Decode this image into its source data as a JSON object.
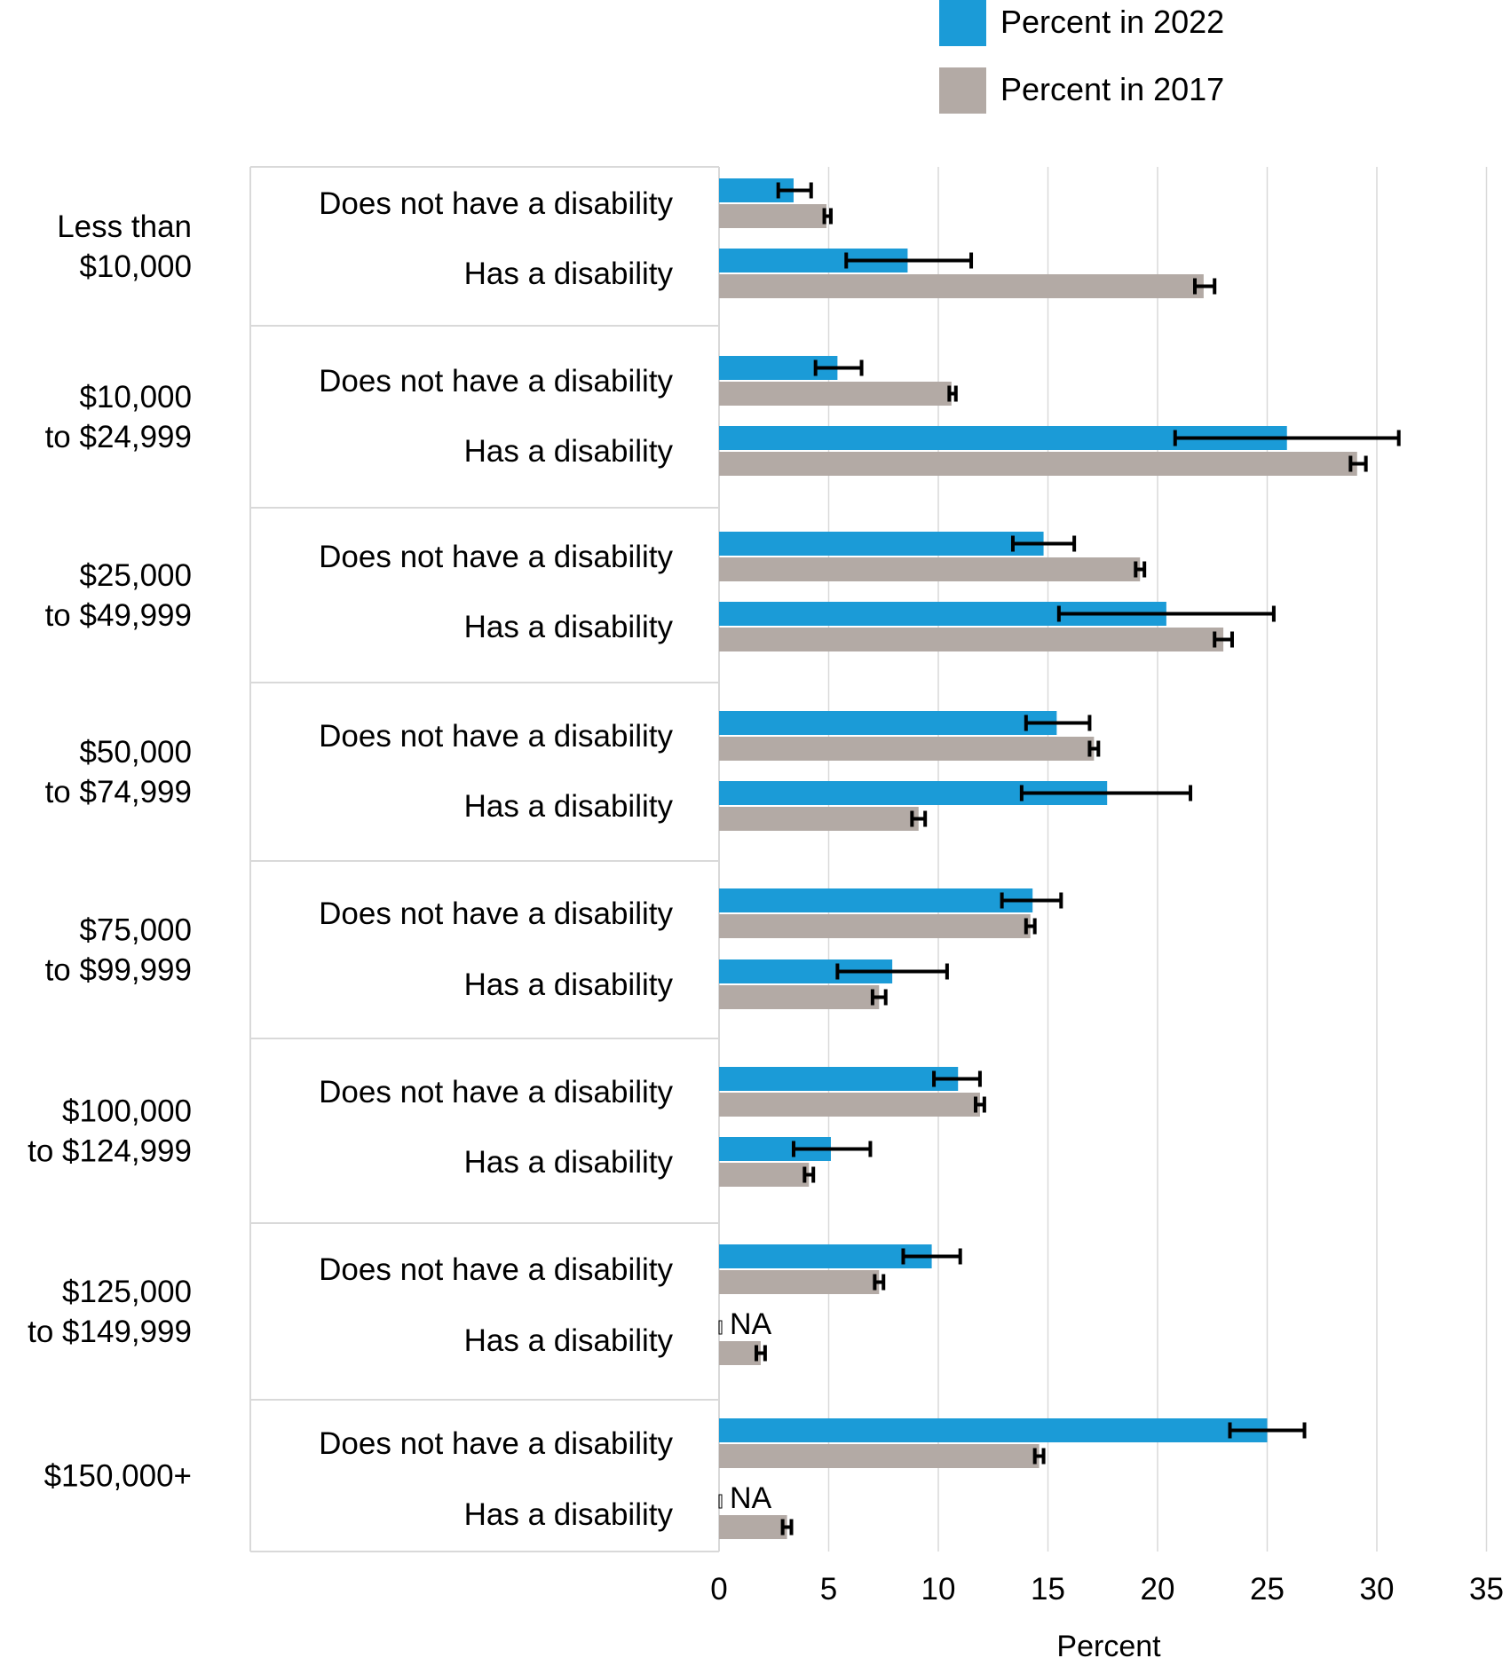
{
  "chart_data": {
    "type": "bar",
    "orientation": "horizontal",
    "xlabel": "Percent",
    "xlim": [
      0,
      35
    ],
    "xticks": [
      0,
      5,
      10,
      15,
      20,
      25,
      30,
      35
    ],
    "grid": "vertical",
    "legend_position": "top-right",
    "colors": {
      "2022": "#1b9bd7",
      "2017": "#b3aaa5",
      "error_bar": "#000000",
      "grid": "#d9d9d9",
      "separator": "#d9d9d9"
    },
    "series": [
      {
        "key": "2022",
        "name": "Percent in 2022"
      },
      {
        "key": "2017",
        "name": "Percent in 2017"
      }
    ],
    "groups": [
      {
        "label_lines": [
          "Less than",
          "$10,000"
        ],
        "rows": [
          {
            "label": "Does not have a disability",
            "v2022": 3.4,
            "lo2022": 2.7,
            "hi2022": 4.2,
            "v2017": 4.9,
            "lo2017": 4.8,
            "hi2017": 5.1
          },
          {
            "label": "Has a disability",
            "v2022": 8.6,
            "lo2022": 5.8,
            "hi2022": 11.5,
            "v2017": 22.1,
            "lo2017": 21.7,
            "hi2017": 22.6
          }
        ]
      },
      {
        "label_lines": [
          "$10,000",
          "to $24,999"
        ],
        "rows": [
          {
            "label": "Does not have a disability",
            "v2022": 5.4,
            "lo2022": 4.4,
            "hi2022": 6.5,
            "v2017": 10.6,
            "lo2017": 10.5,
            "hi2017": 10.8
          },
          {
            "label": "Has a disability",
            "v2022": 25.9,
            "lo2022": 20.8,
            "hi2022": 31.0,
            "v2017": 29.1,
            "lo2017": 28.8,
            "hi2017": 29.5
          }
        ]
      },
      {
        "label_lines": [
          "$25,000",
          "to $49,999"
        ],
        "rows": [
          {
            "label": "Does not have a disability",
            "v2022": 14.8,
            "lo2022": 13.4,
            "hi2022": 16.2,
            "v2017": 19.2,
            "lo2017": 19.0,
            "hi2017": 19.4
          },
          {
            "label": "Has a disability",
            "v2022": 20.4,
            "lo2022": 15.5,
            "hi2022": 25.3,
            "v2017": 23.0,
            "lo2017": 22.6,
            "hi2017": 23.4
          }
        ]
      },
      {
        "label_lines": [
          "$50,000",
          "to $74,999"
        ],
        "rows": [
          {
            "label": "Does not have a disability",
            "v2022": 15.4,
            "lo2022": 14.0,
            "hi2022": 16.9,
            "v2017": 17.1,
            "lo2017": 16.9,
            "hi2017": 17.3
          },
          {
            "label": "Has a disability",
            "v2022": 17.7,
            "lo2022": 13.8,
            "hi2022": 21.5,
            "v2017": 9.1,
            "lo2017": 8.8,
            "hi2017": 9.4
          }
        ]
      },
      {
        "label_lines": [
          "$75,000",
          "to $99,999"
        ],
        "rows": [
          {
            "label": "Does not have a disability",
            "v2022": 14.3,
            "lo2022": 12.9,
            "hi2022": 15.6,
            "v2017": 14.2,
            "lo2017": 14.0,
            "hi2017": 14.4
          },
          {
            "label": "Has a disability",
            "v2022": 7.9,
            "lo2022": 5.4,
            "hi2022": 10.4,
            "v2017": 7.3,
            "lo2017": 7.0,
            "hi2017": 7.6
          }
        ]
      },
      {
        "label_lines": [
          "$100,000",
          "to $124,999"
        ],
        "rows": [
          {
            "label": "Does not have a disability",
            "v2022": 10.9,
            "lo2022": 9.8,
            "hi2022": 11.9,
            "v2017": 11.9,
            "lo2017": 11.7,
            "hi2017": 12.1
          },
          {
            "label": "Has a disability",
            "v2022": 5.1,
            "lo2022": 3.4,
            "hi2022": 6.9,
            "v2017": 4.1,
            "lo2017": 3.9,
            "hi2017": 4.3
          }
        ]
      },
      {
        "label_lines": [
          "$125,000",
          "to $149,999"
        ],
        "rows": [
          {
            "label": "Does not have a disability",
            "v2022": 9.7,
            "lo2022": 8.4,
            "hi2022": 11.0,
            "v2017": 7.3,
            "lo2017": 7.1,
            "hi2017": 7.5
          },
          {
            "label": "Has a disability",
            "v2022": null,
            "na_label": "NA",
            "v2017": 1.9,
            "lo2017": 1.7,
            "hi2017": 2.1
          }
        ]
      },
      {
        "label_lines": [
          "$150,000+"
        ],
        "rows": [
          {
            "label": "Does not have a disability",
            "v2022": 25.0,
            "lo2022": 23.3,
            "hi2022": 26.7,
            "v2017": 14.6,
            "lo2017": 14.4,
            "hi2017": 14.8
          },
          {
            "label": "Has a disability",
            "v2022": null,
            "na_label": "NA",
            "v2017": 3.1,
            "lo2017": 2.9,
            "hi2017": 3.3
          }
        ]
      }
    ]
  }
}
